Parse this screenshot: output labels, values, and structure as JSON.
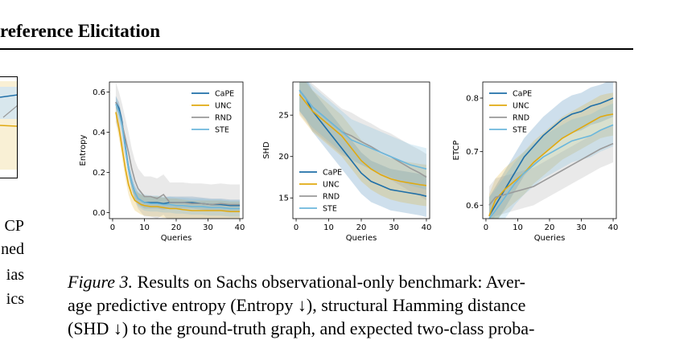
{
  "header": {
    "title": "reference Elicitation"
  },
  "left_column": {
    "lines": [
      "CP",
      "ned",
      "ias",
      "ics"
    ]
  },
  "caption": {
    "label": "Figure 3.",
    "line1": " Results on Sachs observational-only benchmark: Aver-",
    "line2": "age predictive entropy (Entropy ↓), structural Hamming distance",
    "line3": "(SHD ↓) to the ground-truth graph, and expected two-class proba-"
  },
  "colors": {
    "CaPE": "#1f6fa8",
    "UNC": "#e0a910",
    "RND": "#9a9a9a",
    "STE": "#6bb7dc"
  },
  "chart_data": [
    {
      "type": "line",
      "ylabel": "Entropy",
      "xlabel": "Queries",
      "xlim": [
        -1,
        41
      ],
      "ylim": [
        -0.03,
        0.65
      ],
      "xticks": [
        0,
        10,
        20,
        30,
        40
      ],
      "yticks": [
        0.0,
        0.2,
        0.4,
        0.6
      ],
      "ytick_labels": [
        "0.0",
        "0.2",
        "0.4",
        "0.6"
      ],
      "legend": "top-right",
      "x": [
        1,
        2,
        3,
        4,
        5,
        6,
        7,
        8,
        9,
        10,
        12,
        14,
        16,
        18,
        20,
        22,
        25,
        28,
        31,
        34,
        37,
        40
      ],
      "series": [
        {
          "name": "CaPE",
          "values": [
            0.55,
            0.52,
            0.45,
            0.33,
            0.22,
            0.15,
            0.1,
            0.07,
            0.06,
            0.05,
            0.05,
            0.05,
            0.045,
            0.05,
            0.05,
            0.05,
            0.05,
            0.045,
            0.04,
            0.04,
            0.035,
            0.035
          ],
          "band": 0.03
        },
        {
          "name": "UNC",
          "values": [
            0.5,
            0.42,
            0.32,
            0.22,
            0.14,
            0.09,
            0.06,
            0.05,
            0.04,
            0.035,
            0.03,
            0.03,
            0.025,
            0.02,
            0.02,
            0.015,
            0.01,
            0.01,
            0.01,
            0.01,
            0.005,
            0.005
          ],
          "band": 0.05
        },
        {
          "name": "RND",
          "values": [
            0.55,
            0.5,
            0.44,
            0.37,
            0.3,
            0.22,
            0.16,
            0.12,
            0.1,
            0.08,
            0.08,
            0.07,
            0.09,
            0.05,
            0.05,
            0.05,
            0.045,
            0.045,
            0.04,
            0.045,
            0.04,
            0.04
          ],
          "band": 0.1
        },
        {
          "name": "STE",
          "values": [
            0.54,
            0.5,
            0.43,
            0.32,
            0.22,
            0.15,
            0.1,
            0.07,
            0.06,
            0.05,
            0.045,
            0.045,
            0.04,
            0.04,
            0.035,
            0.035,
            0.03,
            0.03,
            0.025,
            0.025,
            0.02,
            0.02
          ],
          "band": 0.04
        }
      ]
    },
    {
      "type": "line",
      "ylabel": "SHD",
      "xlabel": "Queries",
      "xlim": [
        -1,
        41
      ],
      "ylim": [
        12.5,
        29
      ],
      "xticks": [
        0,
        10,
        20,
        30,
        40
      ],
      "yticks": [
        15,
        20,
        25
      ],
      "ytick_labels": [
        "15",
        "20",
        "25"
      ],
      "legend": "bottom-left",
      "x": [
        1,
        3,
        5,
        8,
        11,
        14,
        17,
        20,
        23,
        26,
        29,
        32,
        35,
        38,
        40
      ],
      "series": [
        {
          "name": "CaPE",
          "values": [
            28.0,
            27.0,
            25.5,
            24.0,
            22.5,
            21.0,
            19.5,
            18.0,
            17.0,
            16.5,
            16.0,
            15.8,
            15.6,
            15.4,
            15.2
          ],
          "band": 2.5
        },
        {
          "name": "UNC",
          "values": [
            27.5,
            26.5,
            25.5,
            24.5,
            23.5,
            22.5,
            21.0,
            19.5,
            18.5,
            17.8,
            17.3,
            17.0,
            16.8,
            16.6,
            16.5
          ],
          "band": 2.5
        },
        {
          "name": "RND",
          "values": [
            28.0,
            27.0,
            26.0,
            25.0,
            24.0,
            23.0,
            22.5,
            21.8,
            21.2,
            20.5,
            20.0,
            19.3,
            18.6,
            18.0,
            17.5
          ],
          "band": 2.8
        },
        {
          "name": "STE",
          "values": [
            28.0,
            27.0,
            26.0,
            25.0,
            24.0,
            23.0,
            22.0,
            21.5,
            21.0,
            20.5,
            20.0,
            19.5,
            19.0,
            18.7,
            18.5
          ],
          "band": 2.5
        }
      ]
    },
    {
      "type": "line",
      "ylabel": "ETCP",
      "xlabel": "Queries",
      "xlim": [
        -1,
        41
      ],
      "ylim": [
        0.575,
        0.83
      ],
      "xticks": [
        0,
        10,
        20,
        30,
        40
      ],
      "yticks": [
        0.6,
        0.7,
        0.8
      ],
      "ytick_labels": [
        "0.6",
        "0.7",
        "0.8"
      ],
      "legend": "top-left",
      "x": [
        1,
        3,
        6,
        9,
        12,
        15,
        18,
        21,
        24,
        27,
        30,
        33,
        36,
        38,
        40
      ],
      "series": [
        {
          "name": "CaPE",
          "values": [
            0.58,
            0.6,
            0.63,
            0.66,
            0.69,
            0.71,
            0.73,
            0.745,
            0.76,
            0.77,
            0.775,
            0.785,
            0.79,
            0.795,
            0.8
          ],
          "band": 0.035
        },
        {
          "name": "UNC",
          "values": [
            0.58,
            0.61,
            0.63,
            0.645,
            0.66,
            0.68,
            0.695,
            0.71,
            0.725,
            0.735,
            0.745,
            0.755,
            0.765,
            0.768,
            0.77
          ],
          "band": 0.04
        },
        {
          "name": "RND",
          "values": [
            0.6,
            0.615,
            0.62,
            0.625,
            0.63,
            0.635,
            0.645,
            0.655,
            0.665,
            0.675,
            0.685,
            0.695,
            0.705,
            0.71,
            0.715
          ],
          "band": 0.035
        },
        {
          "name": "STE",
          "values": [
            0.575,
            0.59,
            0.615,
            0.64,
            0.66,
            0.675,
            0.69,
            0.7,
            0.71,
            0.72,
            0.725,
            0.73,
            0.74,
            0.745,
            0.75
          ],
          "band": 0.04
        }
      ]
    }
  ]
}
